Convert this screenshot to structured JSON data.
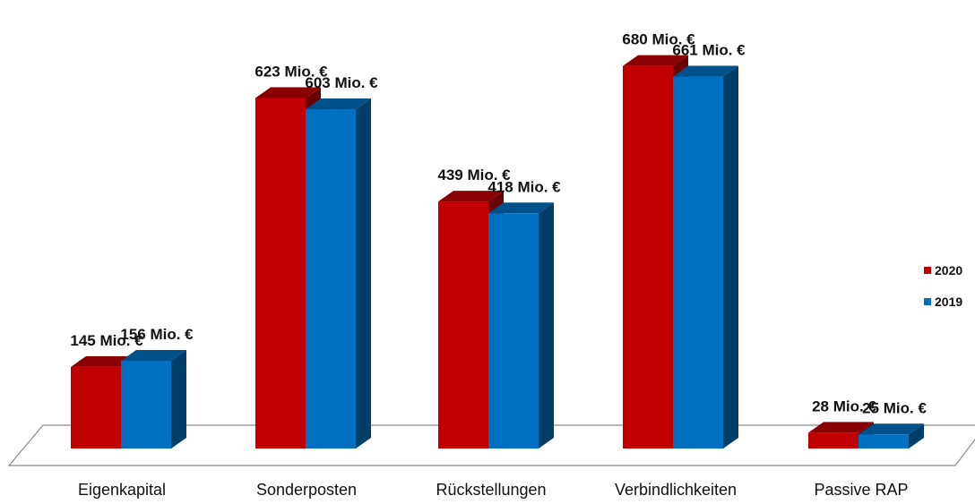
{
  "chart_data": {
    "type": "bar",
    "style": "3d-clustered-column",
    "title": "",
    "xlabel": "",
    "ylabel": "",
    "categories": [
      "Eigenkapital",
      "Sonderposten",
      "Rückstellungen",
      "Verbindlichkeiten",
      "Passive RAP"
    ],
    "series": [
      {
        "name": "2020",
        "color": "#c00000",
        "values": [
          145,
          623,
          439,
          680,
          28
        ],
        "labels": [
          "145 Mio. €",
          "623 Mio. €",
          "439 Mio. €",
          "680 Mio. €",
          "28 Mio. €"
        ]
      },
      {
        "name": "2019",
        "color": "#0070c0",
        "values": [
          156,
          603,
          418,
          661,
          25
        ],
        "labels": [
          "156 Mio. €",
          "603 Mio. €",
          "418 Mio. €",
          "661 Mio. €",
          "25 Mio. €"
        ]
      }
    ],
    "unit": "Mio. €",
    "ylim": [
      0,
      700
    ],
    "grid": false,
    "legend_position": "right"
  }
}
